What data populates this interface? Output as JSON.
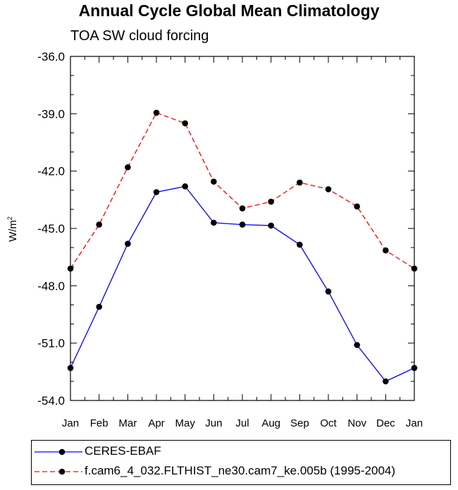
{
  "chart_data": {
    "type": "line",
    "title": "Annual Cycle Global Mean Climatology",
    "subtitle": "TOA SW cloud forcing",
    "ylabel_base": "W/m",
    "ylabel_exp": "2",
    "xlabel": "",
    "categories": [
      "Jan",
      "Feb",
      "Mar",
      "Apr",
      "May",
      "Jun",
      "Jul",
      "Aug",
      "Sep",
      "Oct",
      "Nov",
      "Dec",
      "Jan"
    ],
    "ylim": [
      -54.0,
      -36.0
    ],
    "yticks": [
      -36.0,
      -39.0,
      -42.0,
      -45.0,
      -48.0,
      -51.0,
      -54.0
    ],
    "ytick_labels": [
      "-36.0",
      "-39.0",
      "-42.0",
      "-45.0",
      "-48.0",
      "-51.0",
      "-54.0"
    ],
    "series": [
      {
        "name": "CERES-EBAF",
        "color": "#0000ff",
        "dash": "solid",
        "values": [
          -52.3,
          -49.1,
          -45.8,
          -43.1,
          -42.8,
          -44.7,
          -44.8,
          -44.85,
          -45.85,
          -48.3,
          -51.1,
          -53.0,
          -52.3
        ]
      },
      {
        "name": "f.cam6_4_032.FLTHIST_ne30.cam7_ke.005b (1995-2004)",
        "color": "#ff0000",
        "dash": "dashed",
        "values": [
          -47.1,
          -44.8,
          -41.8,
          -38.95,
          -39.5,
          -42.55,
          -43.95,
          -43.6,
          -42.6,
          -42.95,
          -43.85,
          -46.15,
          -47.1
        ]
      }
    ]
  }
}
